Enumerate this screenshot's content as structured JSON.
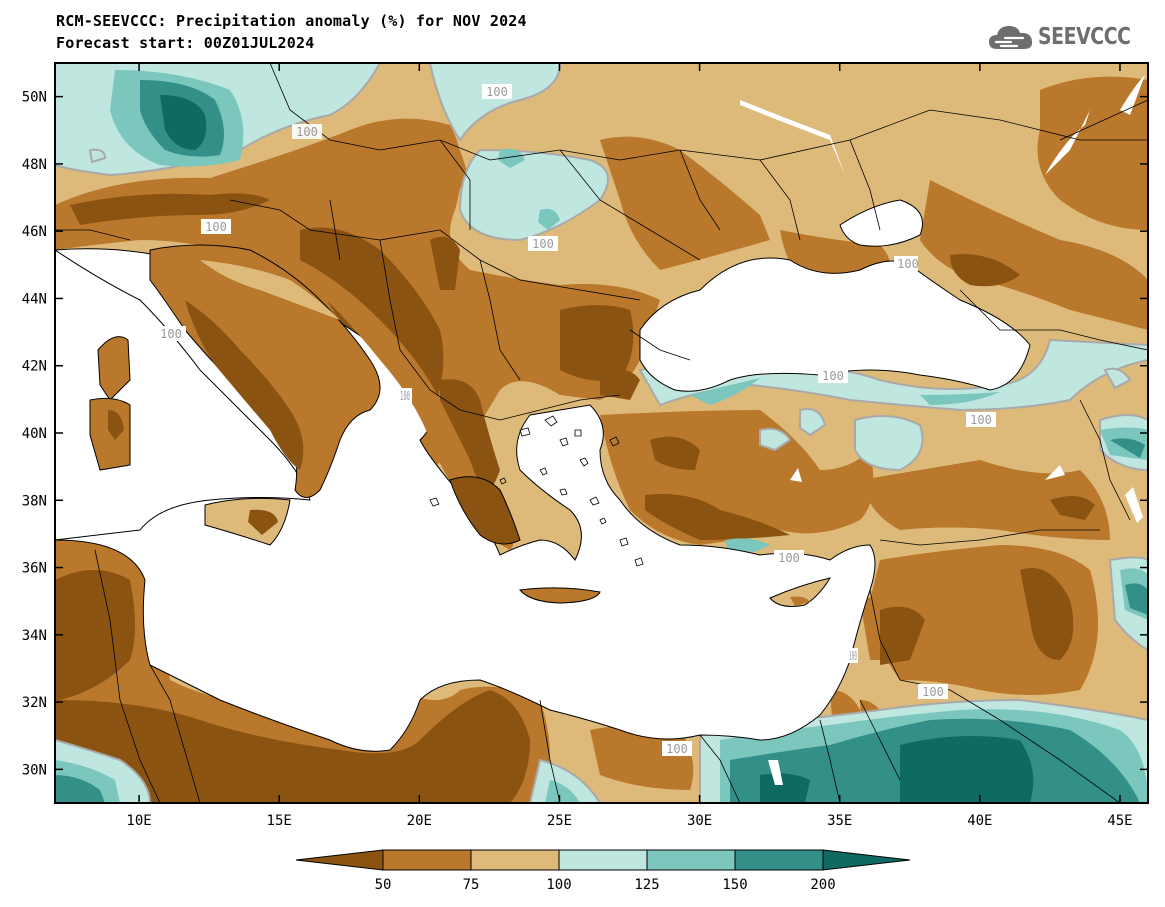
{
  "header": {
    "title_line1": "RCM-SEEVCCC: Precipitation anomaly (%) for NOV 2024",
    "title_line2": "Forecast start: 00Z01JUL2024",
    "logo_text": "SEEVCCC"
  },
  "map": {
    "region": "Mediterranean / South-East Europe",
    "lon_labels": [
      "10E",
      "15E",
      "20E",
      "25E",
      "30E",
      "35E",
      "40E",
      "45E"
    ],
    "lat_labels": [
      "30N",
      "32N",
      "34N",
      "36N",
      "38N",
      "40N",
      "42N",
      "44N",
      "46N",
      "48N",
      "50N"
    ],
    "contour_labels": [
      "100",
      "100",
      "100",
      "100",
      "100",
      "100",
      "100",
      "100",
      "100",
      "100",
      "100",
      "100",
      "100"
    ],
    "colors": {
      "lt50": "#8b5312",
      "50_75": "#b9782b",
      "75_100": "#deba7a",
      "100_125": "#bfe6df",
      "125_150": "#7bc7bd",
      "150_200": "#339089",
      "gt200": "#0e6a62",
      "sea": "#ffffff",
      "contour_100": "#a9a9a9"
    }
  },
  "colorbar": {
    "ticks": [
      "50",
      "75",
      "100",
      "125",
      "150",
      "200"
    ]
  }
}
